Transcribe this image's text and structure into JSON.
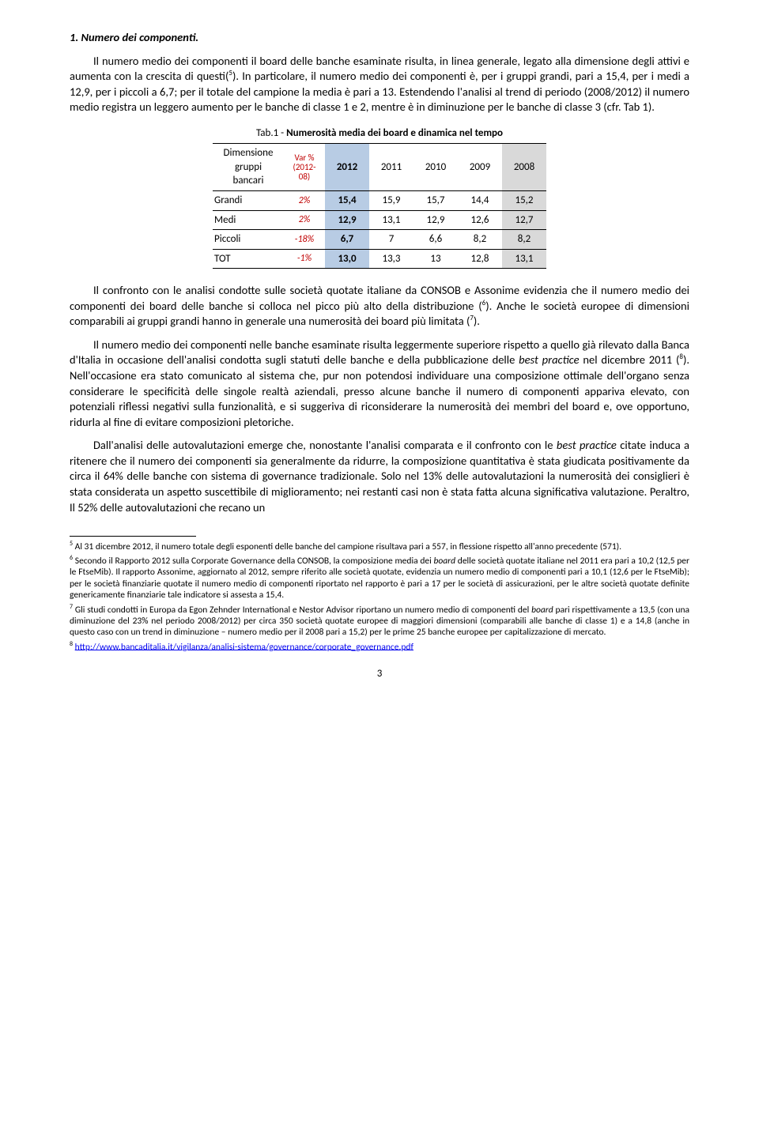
{
  "heading": "1. Numero dei componenti.",
  "para1_pre": "Il numero medio dei componenti il board delle banche esaminate risulta, in linea generale, legato alla dimensione degli attivi e aumenta con la crescita di questi(",
  "para1_sup": "5",
  "para1_post": "). In particolare, il numero medio dei componenti è, per i gruppi grandi, pari a 15,4, per i medi a 12,9, per i piccoli a 6,7; per il totale del campione la media è pari a 13. Estendendo l'analisi al trend di periodo (2008/2012) il numero medio registra un leggero aumento per le banche di classe 1 e 2, mentre è in diminuzione per le banche di classe 3 (cfr. Tab 1).",
  "table": {
    "caption_prefix": "Tab.1 - ",
    "caption_bold": "Numerosità media dei board e dinamica nel tempo",
    "head_dim": "Dimensione gruppi bancari",
    "head_var": "Var % (2012-08)",
    "years": [
      "2012",
      "2011",
      "2010",
      "2009",
      "2008"
    ],
    "rows": [
      {
        "label": "Grandi",
        "var": "2%",
        "v": [
          "15,4",
          "15,9",
          "15,7",
          "14,4",
          "15,2"
        ]
      },
      {
        "label": "Medi",
        "var": "2%",
        "v": [
          "12,9",
          "13,1",
          "12,9",
          "12,6",
          "12,7"
        ]
      },
      {
        "label": "Piccoli",
        "var": "-18%",
        "v": [
          "6,7",
          "7",
          "6,6",
          "8,2",
          "8,2"
        ]
      }
    ],
    "totrow": {
      "label": "TOT",
      "var": "-1%",
      "v": [
        "13,0",
        "13,3",
        "13",
        "12,8",
        "13,1"
      ]
    }
  },
  "para2_pre": "Il confronto con le analisi condotte sulle società quotate italiane da CONSOB e Assonime evidenzia che il numero medio dei componenti dei board delle banche si colloca nel picco più alto della distribuzione (",
  "para2_sup": "6",
  "para2_mid": "). Anche le società europee di dimensioni comparabili ai gruppi grandi hanno in generale una numerosità dei board più limitata (",
  "para2_sup2": "7",
  "para2_post": ").",
  "para3_pre": "Il numero medio dei componenti nelle banche esaminate risulta leggermente superiore rispetto a quello già rilevato dalla Banca d'Italia in occasione dell'analisi condotta sugli statuti delle banche e della pubblicazione delle ",
  "para3_it1": "best practice",
  "para3_mid1": " nel dicembre 2011 (",
  "para3_sup": "8",
  "para3_post": "). Nell'occasione era stato comunicato al sistema che, pur non potendosi individuare una composizione ottimale dell'organo senza considerare le specificità delle singole realtà aziendali, presso alcune banche il numero di componenti appariva elevato, con potenziali riflessi negativi sulla funzionalità, e si suggeriva di riconsiderare la numerosità dei membri del board e, ove opportuno, ridurla al fine di evitare composizioni pletoriche.",
  "para4_pre": "Dall'analisi delle autovalutazioni emerge che, nonostante l'analisi comparata e il confronto con le ",
  "para4_it1": "best practice",
  "para4_post": " citate induca a ritenere che il numero dei componenti sia generalmente da ridurre, la composizione quantitativa è stata giudicata positivamente da circa il 64% delle banche con sistema di governance tradizionale. Solo nel 13% delle autovalutazioni la numerosità dei consiglieri è stata considerata un aspetto suscettibile di miglioramento; nei restanti casi non è stata fatta alcuna significativa valutazione. Peraltro, Il 52% delle autovalutazioni che recano un",
  "fn5": {
    "sup": "5",
    "text": " Al 31 dicembre 2012, il numero totale degli esponenti delle banche del campione risultava pari a 557, in flessione rispetto all'anno precedente (571)."
  },
  "fn6": {
    "sup": "6",
    "text": " Secondo il Rapporto 2012 sulla Corporate Governance della CONSOB, la composizione media dei  ",
    "it": "board",
    "text2": " delle società quotate italiane nel 2011 era pari a 10,2 (12,5 per le FtseMib). Il rapporto Assonime, aggiornato al 2012, sempre riferito alle società quotate, evidenzia un numero medio di componenti pari a 10,1 (12,6 per le FtseMib); per le società finanziarie quotate il numero medio di componenti riportato nel rapporto è pari a 17 per le società di assicurazioni, per le altre società quotate definite genericamente finanziarie tale indicatore si assesta a 15,4."
  },
  "fn7": {
    "sup": "7",
    "text": " Gli studi condotti in Europa da Egon Zehnder International e Nestor Advisor riportano un numero medio di componenti del  ",
    "it": "board",
    "text2": " pari rispettivamente a 13,5 (con una diminuzione del 23% nel periodo 2008/2012) per circa 350 società quotate europee di maggiori dimensioni (comparabili alle banche di classe 1) e a 14,8 (anche in questo caso con un trend in diminuzione – numero medio per il 2008 pari a 15,2) per le prime 25 banche europee per capitalizzazione di mercato."
  },
  "fn8": {
    "sup": "8",
    "link": "http://www.bancaditalia.it/vigilanza/analisi-sistema/governance/corporate_governance.pdf"
  },
  "pagenum": "3"
}
